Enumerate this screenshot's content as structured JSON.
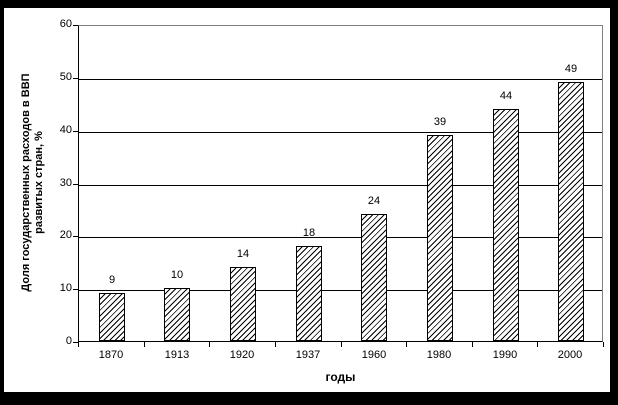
{
  "chart_data": {
    "type": "bar",
    "title": "",
    "categories": [
      "1870",
      "1913",
      "1920",
      "1937",
      "1960",
      "1980",
      "1990",
      "2000"
    ],
    "values": [
      9,
      10,
      14,
      18,
      24,
      39,
      44,
      49
    ],
    "value_labels": [
      9,
      10,
      14,
      18,
      24,
      39,
      44,
      49
    ],
    "xlabel": "годы",
    "ylabel": "Доля государственных расходов в ВВП развитых стран, %",
    "ylabel_lines": [
      "Доля государственных расходов в ВВП",
      "развитых стран, %"
    ],
    "ylim": [
      0,
      60
    ],
    "ytick_step": 10,
    "yticks": [
      0,
      10,
      20,
      30,
      40,
      50,
      60
    ],
    "grid": "horizontal",
    "legend": "none",
    "bar_style": {
      "fill": "#ffffff",
      "hatch": "diagonal-forward",
      "hatch_color": "#000000",
      "border_color": "#000000"
    },
    "colors": {
      "frame": "#000000",
      "background": "#ffffff",
      "plot_border": "#808080",
      "axis": "#000000",
      "gridline": "#000000",
      "text": "#000000"
    }
  }
}
